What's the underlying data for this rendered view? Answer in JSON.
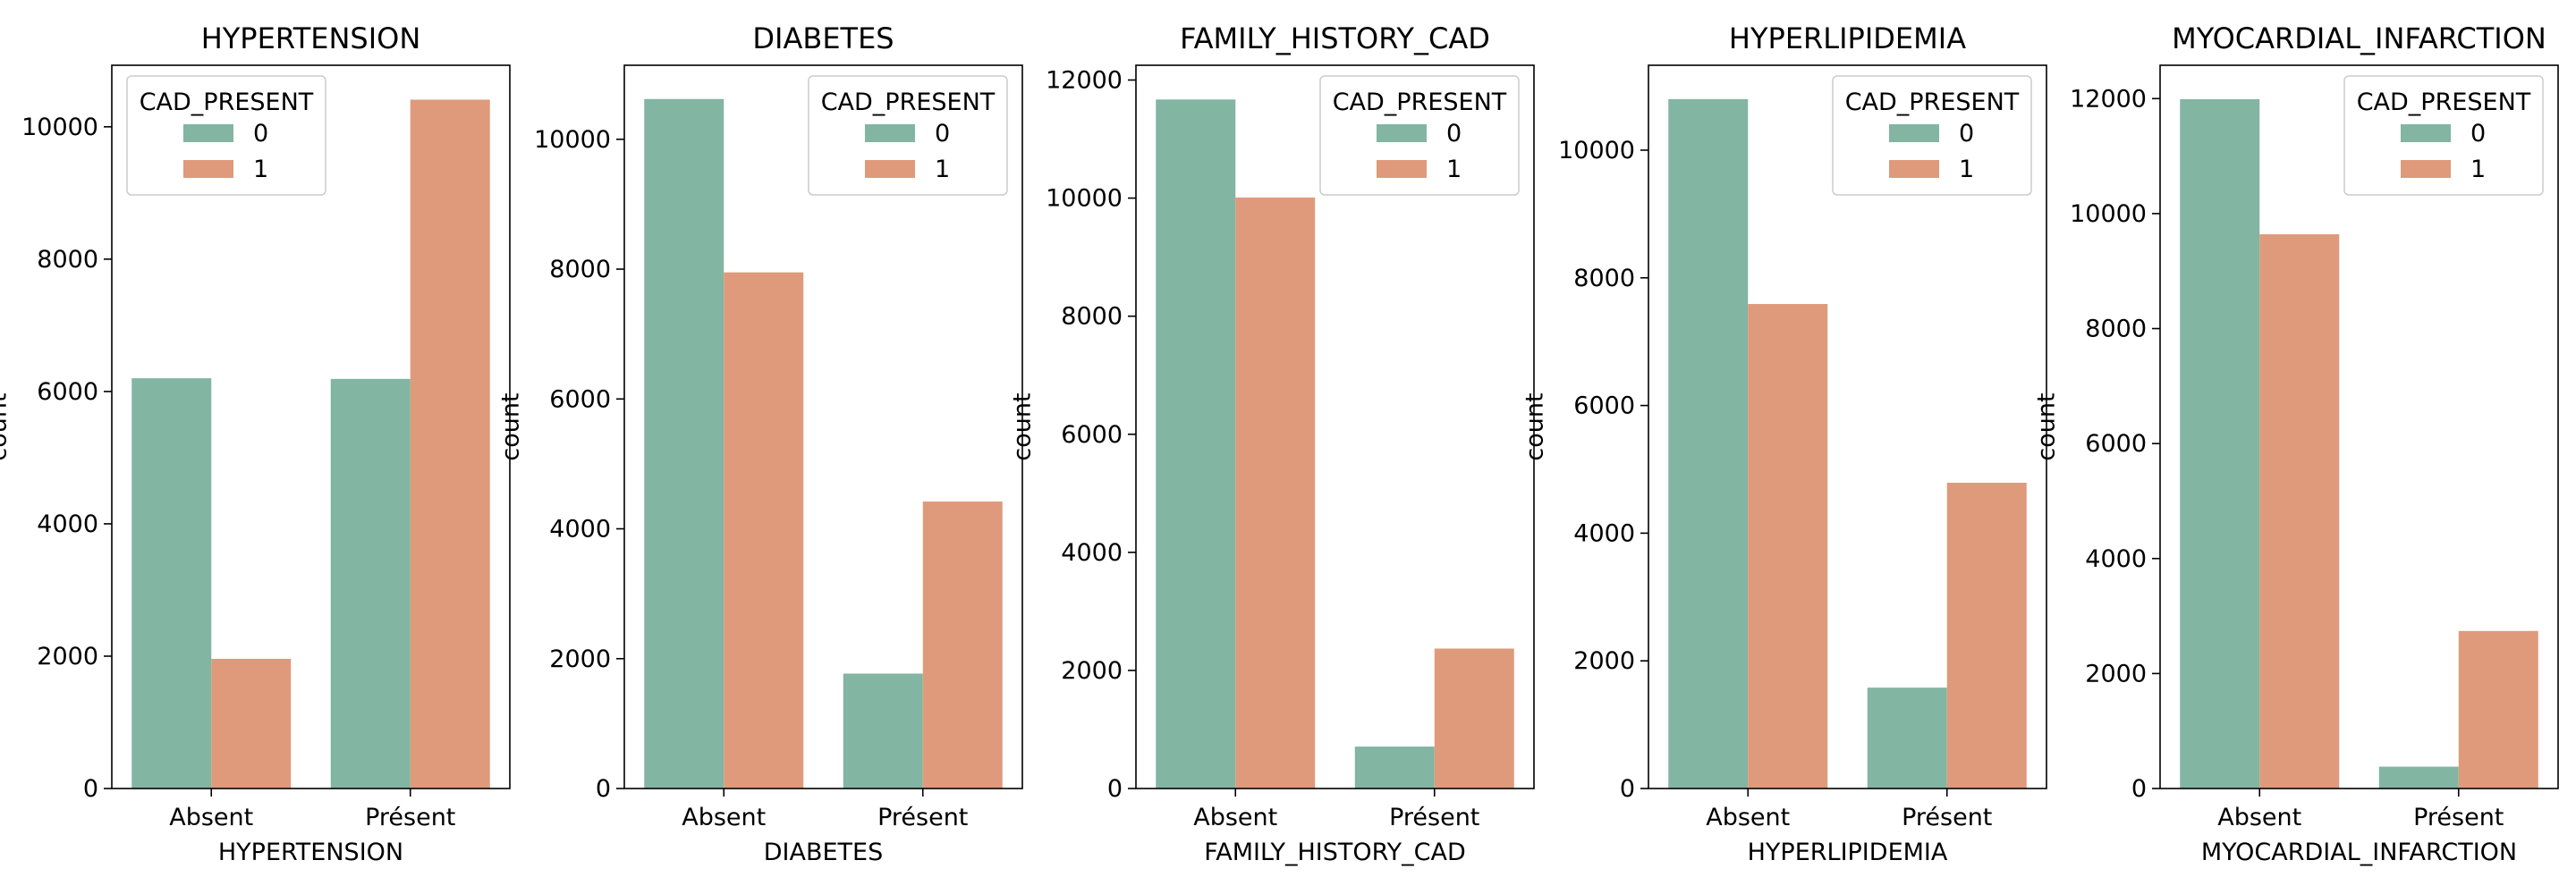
{
  "colors": {
    "series_0": "#82b5a2",
    "series_1": "#df9a7b"
  },
  "chart_data": [
    {
      "type": "bar",
      "title": "HYPERTENSION",
      "xlabel": "HYPERTENSION",
      "ylabel": "count",
      "categories": [
        "Absent",
        "Présent"
      ],
      "ylim": [
        0,
        10930
      ],
      "yticks": [
        0,
        2000,
        4000,
        6000,
        8000,
        10000
      ],
      "legend": {
        "title": "CAD_PRESENT",
        "placement": "upper-left"
      },
      "series": [
        {
          "name": "0",
          "values": [
            6200,
            6190
          ]
        },
        {
          "name": "1",
          "values": [
            1960,
            10410
          ]
        }
      ]
    },
    {
      "type": "bar",
      "title": "DIABETES",
      "xlabel": "DIABETES",
      "ylabel": "count",
      "categories": [
        "Absent",
        "Présent"
      ],
      "ylim": [
        0,
        11140
      ],
      "yticks": [
        0,
        2000,
        4000,
        6000,
        8000,
        10000
      ],
      "legend": {
        "title": "CAD_PRESENT",
        "placement": "upper-right"
      },
      "series": [
        {
          "name": "0",
          "values": [
            10620,
            1770
          ]
        },
        {
          "name": "1",
          "values": [
            7950,
            4420
          ]
        }
      ]
    },
    {
      "type": "bar",
      "title": "FAMILY_HISTORY_CAD",
      "xlabel": "FAMILY_HISTORY_CAD",
      "ylabel": "count",
      "categories": [
        "Absent",
        "Présent"
      ],
      "ylim": [
        0,
        12250
      ],
      "yticks": [
        0,
        2000,
        4000,
        6000,
        8000,
        10000,
        12000
      ],
      "legend": {
        "title": "CAD_PRESENT",
        "placement": "upper-right"
      },
      "series": [
        {
          "name": "0",
          "values": [
            11670,
            710
          ]
        },
        {
          "name": "1",
          "values": [
            10010,
            2370
          ]
        }
      ]
    },
    {
      "type": "bar",
      "title": "HYPERLIPIDEMIA",
      "xlabel": "HYPERLIPIDEMIA",
      "ylabel": "count",
      "categories": [
        "Absent",
        "Présent"
      ],
      "ylim": [
        0,
        11330
      ],
      "yticks": [
        0,
        2000,
        4000,
        6000,
        8000,
        10000
      ],
      "legend": {
        "title": "CAD_PRESENT",
        "placement": "upper-right"
      },
      "series": [
        {
          "name": "0",
          "values": [
            10800,
            1580
          ]
        },
        {
          "name": "1",
          "values": [
            7590,
            4790
          ]
        }
      ]
    },
    {
      "type": "bar",
      "title": "MYOCARDIAL_INFARCTION",
      "xlabel": "MYOCARDIAL_INFARCTION",
      "ylabel": "count",
      "categories": [
        "Absent",
        "Présent"
      ],
      "ylim": [
        0,
        12580
      ],
      "yticks": [
        0,
        2000,
        4000,
        6000,
        8000,
        10000,
        12000
      ],
      "legend": {
        "title": "CAD_PRESENT",
        "placement": "upper-right"
      },
      "series": [
        {
          "name": "0",
          "values": [
            11990,
            380
          ]
        },
        {
          "name": "1",
          "values": [
            9640,
            2740
          ]
        }
      ]
    }
  ]
}
